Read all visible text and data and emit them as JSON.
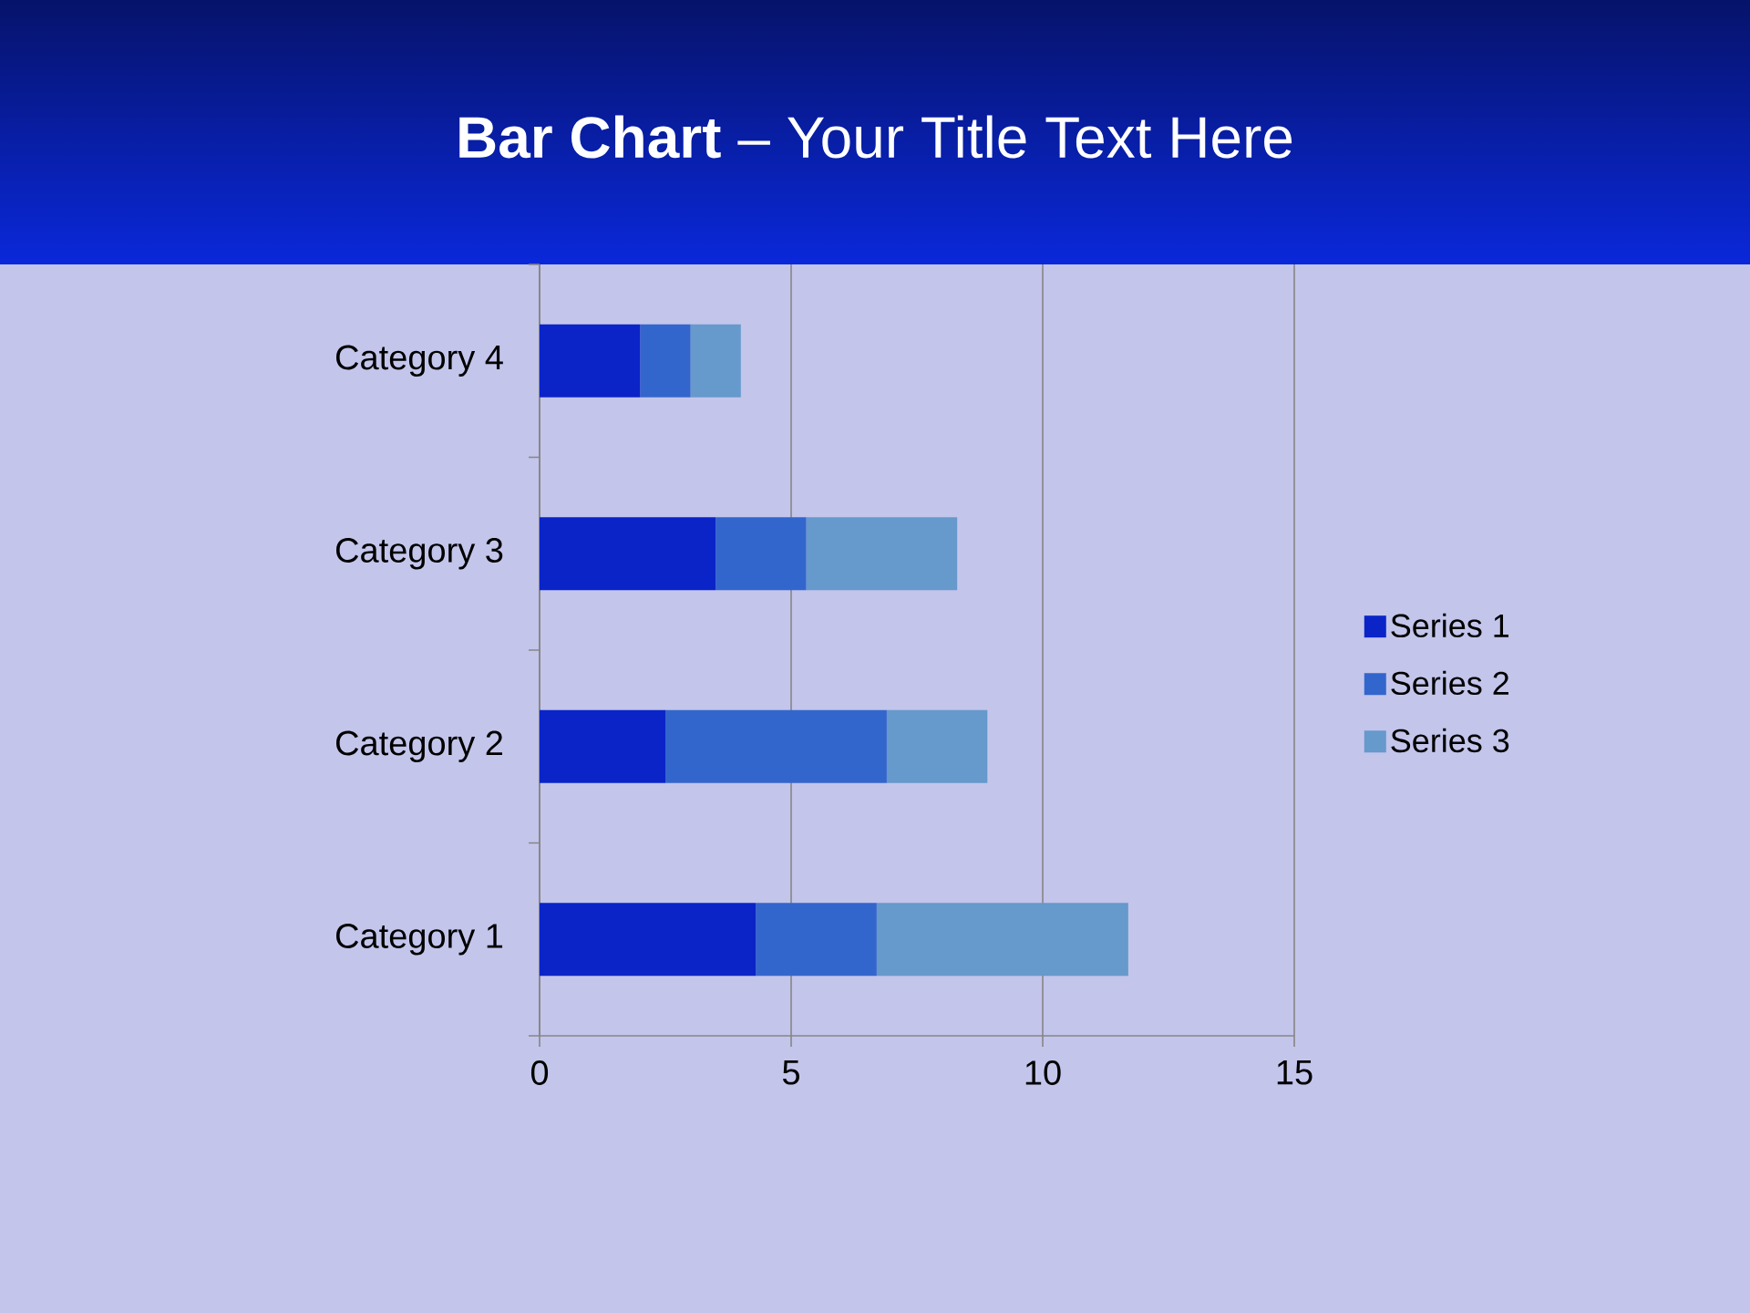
{
  "chart_data": {
    "type": "bar",
    "orientation": "horizontal",
    "stacked": true,
    "title": "**Bar Chart** – Your Title Text Here",
    "categories": [
      "Category 4",
      "Category 3",
      "Category 2",
      "Category 1"
    ],
    "series": [
      {
        "name": "Series 1",
        "color": "#0a24c8",
        "values": [
          2,
          3.5,
          2.5,
          4.3
        ]
      },
      {
        "name": "Series 2",
        "color": "#3366cc",
        "values": [
          1,
          1.8,
          4.4,
          2.4
        ]
      },
      {
        "name": "Series 3",
        "color": "#6699cc",
        "values": [
          1,
          3,
          2,
          5
        ]
      }
    ],
    "xlim": [
      0,
      15
    ],
    "xticks": [
      0,
      5,
      10,
      15
    ],
    "grid": "x",
    "legend": "right"
  }
}
